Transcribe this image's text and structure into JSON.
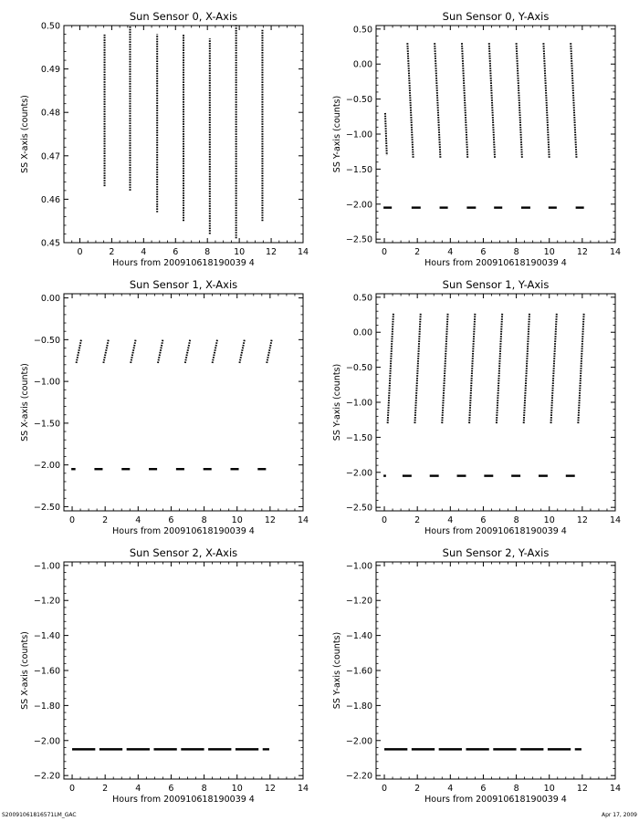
{
  "footer": {
    "left": "S20091061816571LM_GAC",
    "right": "Apr 17, 2009"
  },
  "chart_data": [
    {
      "type": "scatter",
      "title": "Sun Sensor 0, X-Axis",
      "xlabel": "Hours from 200910618190039 4",
      "ylabel": "SS X-axis (counts)",
      "xlim": [
        -1,
        14
      ],
      "ylim": [
        0.45,
        0.5
      ],
      "xticks": [
        0,
        2,
        4,
        6,
        8,
        10,
        12,
        14
      ],
      "yticks": [
        "0.45",
        "0.46",
        "0.47",
        "0.48",
        "0.49",
        "0.50"
      ],
      "grid": false,
      "segments": [
        {
          "x0": 1.55,
          "x1": 1.55,
          "y0": 0.463,
          "y1": 0.498
        },
        {
          "x0": 3.15,
          "x1": 3.15,
          "y0": 0.462,
          "y1": 0.5
        },
        {
          "x0": 4.85,
          "x1": 4.85,
          "y0": 0.457,
          "y1": 0.498
        },
        {
          "x0": 6.5,
          "x1": 6.5,
          "y0": 0.455,
          "y1": 0.498
        },
        {
          "x0": 8.15,
          "x1": 8.15,
          "y0": 0.452,
          "y1": 0.497
        },
        {
          "x0": 9.8,
          "x1": 9.8,
          "y0": 0.451,
          "y1": 0.5
        },
        {
          "x0": 11.45,
          "x1": 11.45,
          "y0": 0.455,
          "y1": 0.499
        }
      ]
    },
    {
      "type": "scatter",
      "title": "Sun Sensor 0, Y-Axis",
      "xlabel": "Hours from 200910618190039 4",
      "ylabel": "SS Y-axis (counts)",
      "xlim": [
        -0.5,
        14
      ],
      "ylim": [
        -2.55,
        0.55
      ],
      "xticks": [
        0,
        2,
        4,
        6,
        8,
        10,
        12,
        14
      ],
      "yticks": [
        "-2.50",
        "-2.00",
        "-1.50",
        "-1.00",
        "-0.50",
        "0.00",
        "0.50"
      ],
      "grid": false,
      "segments": [
        {
          "x0": 0.05,
          "x1": 0.15,
          "y0": -0.7,
          "y1": -1.3
        },
        {
          "x0": 1.4,
          "x1": 1.75,
          "y0": 0.3,
          "y1": -1.35
        },
        {
          "x0": 3.05,
          "x1": 3.4,
          "y0": 0.3,
          "y1": -1.35
        },
        {
          "x0": 4.7,
          "x1": 5.05,
          "y0": 0.3,
          "y1": -1.35
        },
        {
          "x0": 6.35,
          "x1": 6.7,
          "y0": 0.3,
          "y1": -1.35
        },
        {
          "x0": 8.0,
          "x1": 8.35,
          "y0": 0.3,
          "y1": -1.35
        },
        {
          "x0": 9.65,
          "x1": 10.0,
          "y0": 0.3,
          "y1": -1.35
        },
        {
          "x0": 11.3,
          "x1": 11.65,
          "y0": 0.3,
          "y1": -1.35
        }
      ],
      "baseline_dashes": {
        "y": -2.05,
        "ranges": [
          [
            -0.05,
            0.45
          ],
          [
            1.65,
            2.2
          ],
          [
            3.35,
            3.85
          ],
          [
            5.0,
            5.55
          ],
          [
            6.65,
            7.15
          ],
          [
            8.3,
            8.85
          ],
          [
            9.95,
            10.45
          ],
          [
            11.6,
            12.1
          ]
        ]
      }
    },
    {
      "type": "scatter",
      "title": "Sun Sensor 1, X-Axis",
      "xlabel": "Hours from 200910618190039 4",
      "ylabel": "SS X-axis (counts)",
      "xlim": [
        -0.5,
        14
      ],
      "ylim": [
        -2.55,
        0.05
      ],
      "xticks": [
        0,
        2,
        4,
        6,
        8,
        10,
        12,
        14
      ],
      "yticks": [
        "-2.50",
        "-2.00",
        "-1.50",
        "-1.00",
        "-0.50",
        "0.00"
      ],
      "grid": false,
      "segments": [
        {
          "x0": 0.25,
          "x1": 0.55,
          "y0": -0.78,
          "y1": -0.5
        },
        {
          "x0": 1.9,
          "x1": 2.2,
          "y0": -0.78,
          "y1": -0.5
        },
        {
          "x0": 3.55,
          "x1": 3.85,
          "y0": -0.78,
          "y1": -0.5
        },
        {
          "x0": 5.2,
          "x1": 5.5,
          "y0": -0.78,
          "y1": -0.5
        },
        {
          "x0": 6.85,
          "x1": 7.15,
          "y0": -0.78,
          "y1": -0.5
        },
        {
          "x0": 8.5,
          "x1": 8.8,
          "y0": -0.78,
          "y1": -0.5
        },
        {
          "x0": 10.15,
          "x1": 10.45,
          "y0": -0.78,
          "y1": -0.5
        },
        {
          "x0": 11.8,
          "x1": 12.1,
          "y0": -0.78,
          "y1": -0.5
        }
      ],
      "baseline_dashes": {
        "y": -2.05,
        "ranges": [
          [
            -0.05,
            0.2
          ],
          [
            1.35,
            1.85
          ],
          [
            3.0,
            3.5
          ],
          [
            4.65,
            5.15
          ],
          [
            6.3,
            6.8
          ],
          [
            7.95,
            8.45
          ],
          [
            9.6,
            10.1
          ],
          [
            11.25,
            11.75
          ]
        ]
      }
    },
    {
      "type": "scatter",
      "title": "Sun Sensor 1, Y-Axis",
      "xlabel": "Hours from 200910618190039 4",
      "ylabel": "SS Y-axis (counts)",
      "xlim": [
        -0.5,
        14
      ],
      "ylim": [
        -2.55,
        0.55
      ],
      "xticks": [
        0,
        2,
        4,
        6,
        8,
        10,
        12,
        14
      ],
      "yticks": [
        "-2.50",
        "-2.00",
        "-1.50",
        "-1.00",
        "-0.50",
        "0.00",
        "0.50"
      ],
      "grid": false,
      "segments": [
        {
          "x0": 0.2,
          "x1": 0.55,
          "y0": -1.3,
          "y1": 0.28
        },
        {
          "x0": 1.85,
          "x1": 2.2,
          "y0": -1.3,
          "y1": 0.28
        },
        {
          "x0": 3.5,
          "x1": 3.85,
          "y0": -1.3,
          "y1": 0.28
        },
        {
          "x0": 5.15,
          "x1": 5.5,
          "y0": -1.3,
          "y1": 0.28
        },
        {
          "x0": 6.8,
          "x1": 7.15,
          "y0": -1.3,
          "y1": 0.28
        },
        {
          "x0": 8.45,
          "x1": 8.8,
          "y0": -1.3,
          "y1": 0.28
        },
        {
          "x0": 10.1,
          "x1": 10.45,
          "y0": -1.3,
          "y1": 0.28
        },
        {
          "x0": 11.75,
          "x1": 12.1,
          "y0": -1.3,
          "y1": 0.28
        }
      ],
      "baseline_dashes": {
        "y": -2.05,
        "ranges": [
          [
            -0.05,
            0.1
          ],
          [
            1.1,
            1.65
          ],
          [
            2.75,
            3.3
          ],
          [
            4.4,
            4.95
          ],
          [
            6.05,
            6.6
          ],
          [
            7.7,
            8.25
          ],
          [
            9.35,
            9.9
          ],
          [
            11.0,
            11.55
          ]
        ]
      }
    },
    {
      "type": "scatter",
      "title": "Sun Sensor 2, X-Axis",
      "xlabel": "Hours from 200910618190039 4",
      "ylabel": "SS X-axis (counts)",
      "xlim": [
        -0.5,
        14
      ],
      "ylim": [
        -2.22,
        -0.98
      ],
      "xticks": [
        0,
        2,
        4,
        6,
        8,
        10,
        12,
        14
      ],
      "yticks": [
        "-2.20",
        "-2.00",
        "-1.80",
        "-1.60",
        "-1.40",
        "-1.20",
        "-1.00"
      ],
      "grid": false,
      "segments": [],
      "baseline_dashes": {
        "y": -2.05,
        "ranges": [
          [
            0.0,
            1.4
          ],
          [
            1.65,
            3.05
          ],
          [
            3.3,
            4.7
          ],
          [
            4.95,
            6.35
          ],
          [
            6.6,
            8.0
          ],
          [
            8.25,
            9.65
          ],
          [
            9.9,
            11.3
          ],
          [
            11.55,
            11.95
          ]
        ]
      }
    },
    {
      "type": "scatter",
      "title": "Sun Sensor 2, Y-Axis",
      "xlabel": "Hours from 200910618190039 4",
      "ylabel": "SS Y-axis (counts)",
      "xlim": [
        -0.5,
        14
      ],
      "ylim": [
        -2.22,
        -0.98
      ],
      "xticks": [
        0,
        2,
        4,
        6,
        8,
        10,
        12,
        14
      ],
      "yticks": [
        "-2.20",
        "-2.00",
        "-1.80",
        "-1.60",
        "-1.40",
        "-1.20",
        "-1.00"
      ],
      "grid": false,
      "segments": [],
      "baseline_dashes": {
        "y": -2.05,
        "ranges": [
          [
            0.0,
            1.4
          ],
          [
            1.65,
            3.05
          ],
          [
            3.3,
            4.7
          ],
          [
            4.95,
            6.35
          ],
          [
            6.6,
            8.0
          ],
          [
            8.25,
            9.65
          ],
          [
            9.9,
            11.3
          ],
          [
            11.55,
            11.95
          ]
        ]
      }
    }
  ]
}
